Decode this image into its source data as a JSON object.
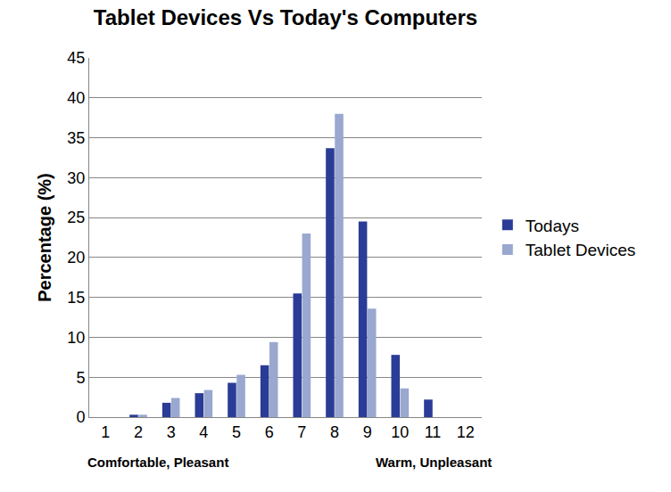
{
  "chart_data": {
    "type": "bar",
    "title": "Tablet Devices Vs Today's Computers",
    "y_label": "Percentage (%)",
    "categories": [
      "1",
      "2",
      "3",
      "4",
      "5",
      "6",
      "7",
      "8",
      "9",
      "10",
      "11",
      "12"
    ],
    "series": [
      {
        "name": "Todays",
        "color": "#2a3c96",
        "values": [
          0,
          0.3,
          1.8,
          3.0,
          4.3,
          6.5,
          15.5,
          33.7,
          24.5,
          7.8,
          2.2,
          0
        ]
      },
      {
        "name": "Tablet Devices",
        "color": "#9aa8d0",
        "values": [
          0,
          0.3,
          2.4,
          3.4,
          5.3,
          9.4,
          23.0,
          38.0,
          13.6,
          3.6,
          0,
          0
        ]
      }
    ],
    "annotations": [
      "Comfortable, Pleasant",
      "Warm, Unpleasant"
    ],
    "ylim": [
      0,
      45
    ],
    "yticks": [
      0,
      5,
      10,
      15,
      20,
      25,
      30,
      35,
      40,
      45
    ],
    "grid": true,
    "legend": "right"
  }
}
